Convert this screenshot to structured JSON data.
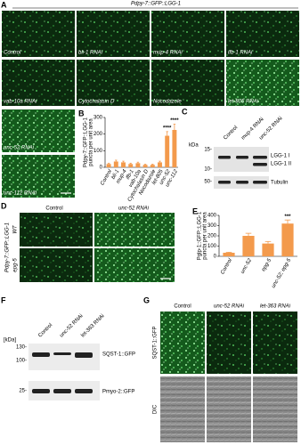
{
  "panel_a": {
    "letter": "A",
    "title": "Pdpy-7::GFP::LGG-1",
    "images": [
      "Control",
      "bli-1 RNAi",
      "mup-4 RNAi",
      "ifb-1 RNAi",
      "vab-10a RNAi",
      "Cytochalasin D",
      "Nocodazole",
      "let-805 RNAi",
      "unc-52 RNAi",
      "unc-112 RNAi"
    ]
  },
  "chart_data": [
    {
      "type": "bar",
      "letter": "B",
      "ylabel": [
        "Pdpy-7::GFP::LGG-1",
        "puncta per unit area"
      ],
      "categories": [
        "Control",
        "bli-1",
        "mup-4",
        "ifb-1",
        "vab-10a",
        "Cytochalasin D",
        "Nocodazole",
        "let-805",
        "unc-52",
        "unc-112"
      ],
      "values": [
        20,
        35,
        30,
        20,
        25,
        15,
        15,
        30,
        190,
        225
      ],
      "errors": [
        5,
        8,
        7,
        5,
        6,
        4,
        4,
        7,
        25,
        35
      ],
      "significance": [
        null,
        null,
        null,
        null,
        null,
        null,
        null,
        null,
        "****",
        "****"
      ],
      "color": "#f39a4c",
      "ylim": [
        0,
        300
      ],
      "yticks": [
        0,
        100,
        200,
        300
      ]
    },
    {
      "type": "bar",
      "letter": "E",
      "ylabel": [
        "Pglp-1::GFP::LGG-1",
        "puncta per unit area"
      ],
      "categories": [
        "Control",
        "unc-52",
        "epg-5",
        "unc-52; epg-5"
      ],
      "values": [
        35,
        200,
        125,
        320
      ],
      "errors": [
        5,
        25,
        20,
        35
      ],
      "significance": [
        null,
        null,
        null,
        "***"
      ],
      "color": "#f39a4c",
      "ylim": [
        0,
        400
      ],
      "yticks": [
        0,
        100,
        200,
        300,
        400
      ]
    }
  ],
  "panel_c": {
    "letter": "C",
    "kda": "kDa",
    "lanes": [
      "Control",
      "mup-4 RNAi",
      "unc-52 RNAi"
    ],
    "markers": [
      "15-",
      "10-",
      "50-"
    ],
    "bands": [
      "LGG-1 I",
      "LGG-1 II",
      "Tubulin"
    ]
  },
  "panel_d": {
    "letter": "D",
    "columns": [
      "Control",
      "unc-52 RNAi"
    ],
    "rows": [
      "WT",
      "epg-5"
    ],
    "ylabel": "Pdpy-7::GFP::LGG-1"
  },
  "panel_f": {
    "letter": "F",
    "kda": "[kDa]",
    "lanes": [
      "Control",
      "unc-52 RNAi",
      "let-363 RNAi"
    ],
    "markers": [
      "130-",
      "100-",
      "25-"
    ],
    "bands": [
      "SQST-1::GFP",
      "Pmyo-2::GFP"
    ]
  },
  "panel_g": {
    "letter": "G",
    "columns": [
      "Control",
      "unc-52 RNAi",
      "let-363 RNAi"
    ],
    "rows": [
      "SQST-1::GFP",
      "DIC"
    ]
  }
}
